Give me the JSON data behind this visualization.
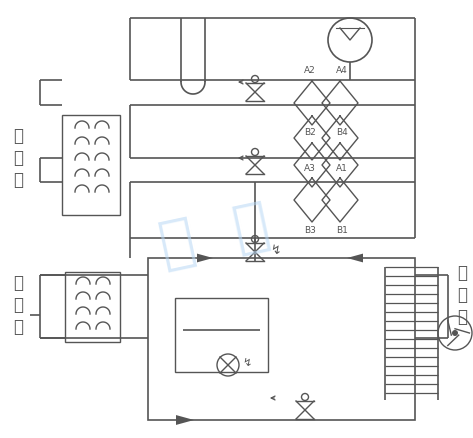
{
  "bg": "#ffffff",
  "lc": "#555555",
  "wm": "#b8d8f5",
  "figsize": [
    4.73,
    4.38
  ],
  "dpi": 100,
  "labels": {
    "hot_water": "热\n水\n侧",
    "load": "负\n荷\n侧",
    "heat_source": "热\n源\n侧"
  }
}
